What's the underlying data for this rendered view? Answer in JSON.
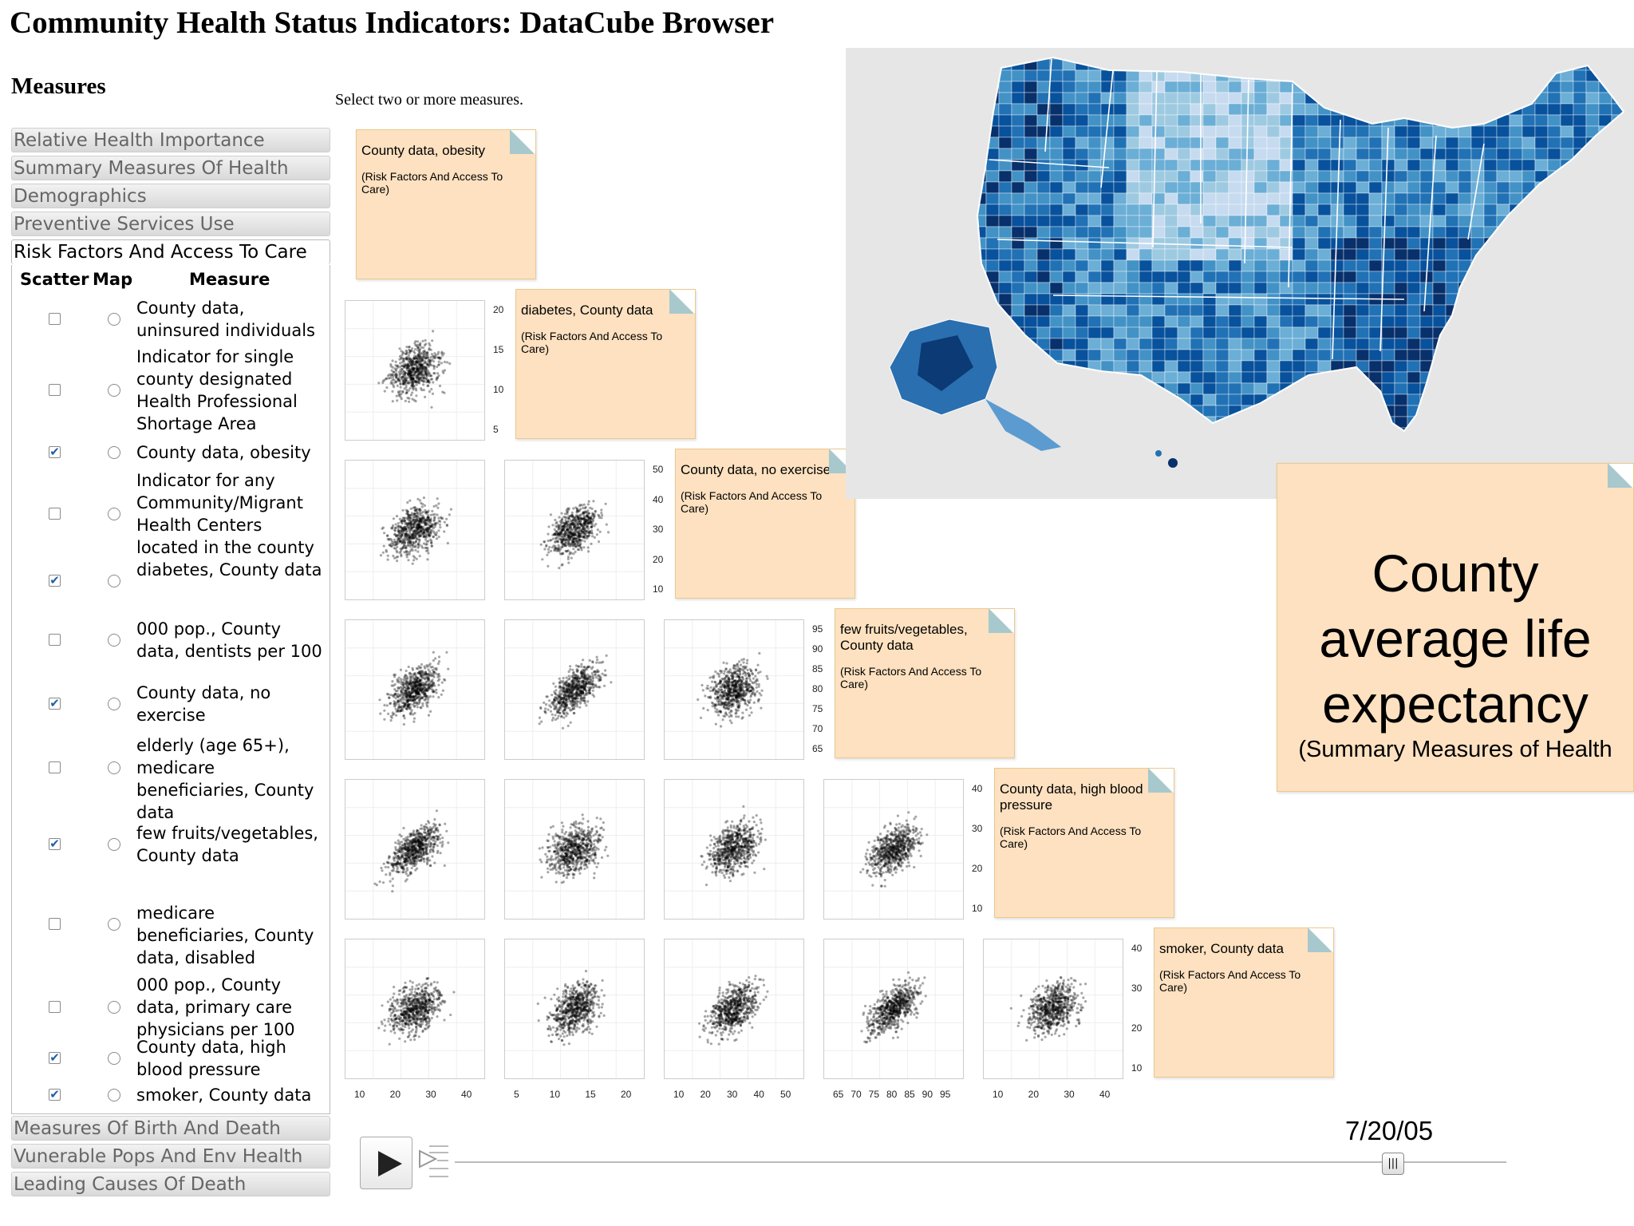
{
  "title": "Community Health Status Indicators: DataCube Browser",
  "measures_heading": "Measures",
  "instruction": "Select two or more measures.",
  "categories_top": [
    "Relative Health Importance",
    "Summary Measures Of Health",
    "Demographics",
    "Preventive Services Use"
  ],
  "open_category": "Risk Factors And Access To Care",
  "columns": {
    "scatter": "Scatter",
    "map": "Map",
    "measure": "Measure"
  },
  "rows": [
    {
      "label": "County data, uninsured individuals",
      "scatter": false
    },
    {
      "label": "Indicator for single county designated Health Professional Shortage Area",
      "scatter": false
    },
    {
      "label": "County data, obesity",
      "scatter": true
    },
    {
      "label": "Indicator for any Community/Migrant Health Centers located in the county",
      "scatter": false
    },
    {
      "label": "diabetes, County data",
      "scatter": true
    },
    {
      "label": "000 pop., County data, dentists per 100",
      "scatter": false
    },
    {
      "label": "County data, no exercise",
      "scatter": true
    },
    {
      "label": "elderly (age 65+), medicare beneficiaries, County data",
      "scatter": false
    },
    {
      "label": "few fruits/vegetables, County data",
      "scatter": true
    },
    {
      "label": "medicare beneficiaries, County data, disabled",
      "scatter": false
    },
    {
      "label": "000 pop., County data, primary care physicians per 100",
      "scatter": false
    },
    {
      "label": "County data, high blood pressure",
      "scatter": true
    },
    {
      "label": "smoker, County data",
      "scatter": true
    }
  ],
  "categories_bottom": [
    "Measures Of Birth And Death",
    "Vunerable Pops And Env Health",
    "Leading Causes Of Death"
  ],
  "notes": [
    {
      "title": "County data, obesity",
      "sub": "(Risk Factors And Access To Care)"
    },
    {
      "title": "diabetes, County data",
      "sub": "(Risk Factors And Access To Care)"
    },
    {
      "title": "County data, no exercise",
      "sub": "(Risk Factors And Access To Care)"
    },
    {
      "title": "few fruits/vegetables, County data",
      "sub": "(Risk Factors And Access To Care)"
    },
    {
      "title": "County data, high blood pressure",
      "sub": "(Risk Factors And Access To Care)"
    },
    {
      "title": "smoker, County data",
      "sub": "(Risk Factors And Access To Care)"
    }
  ],
  "y_ticks": [
    [
      "20",
      "15",
      "10",
      "5"
    ],
    [
      "50",
      "40",
      "30",
      "20",
      "10"
    ],
    [
      "95",
      "90",
      "85",
      "80",
      "75",
      "70",
      "65"
    ],
    [
      "40",
      "30",
      "20",
      "10"
    ],
    [
      "40",
      "30",
      "20",
      "10"
    ]
  ],
  "x_ticks": [
    [
      "10",
      "20",
      "30",
      "40"
    ],
    [
      "5",
      "10",
      "15",
      "20"
    ],
    [
      "10",
      "20",
      "30",
      "40",
      "50"
    ],
    [
      "65",
      "70",
      "75",
      "80",
      "85",
      "90",
      "95"
    ],
    [
      "10",
      "20",
      "30",
      "40"
    ]
  ],
  "big_note": {
    "title": "County average life expectancy",
    "sub": "(Summary Measures of Health"
  },
  "timeline": {
    "date": "7/20/05",
    "thumb_glyph": "|||"
  },
  "colors": {
    "map_dark": "#08306b",
    "map_mid": "#2171b5",
    "map_light": "#9ecae1",
    "sticky": "#fde1c0"
  }
}
